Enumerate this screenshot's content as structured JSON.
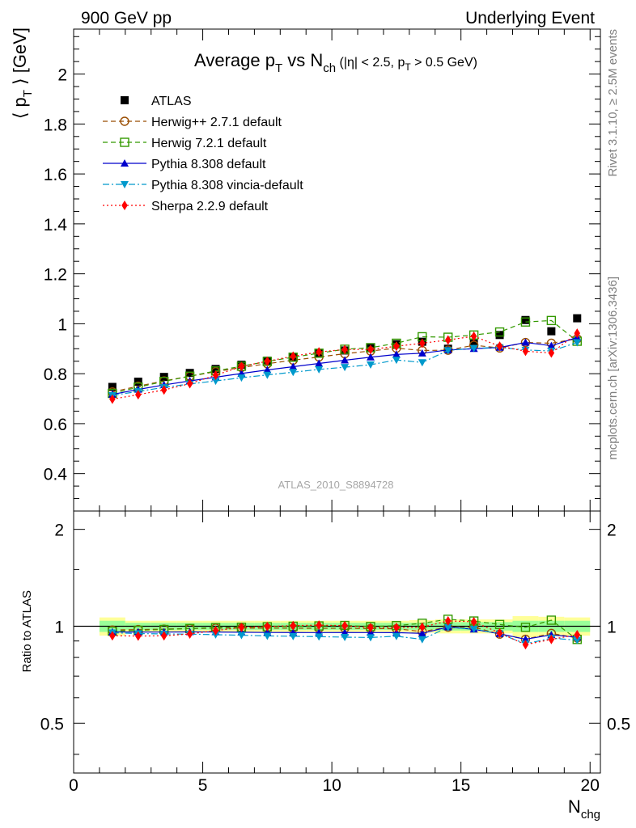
{
  "header": {
    "energy_label": "900 GeV pp",
    "process_label": "Underlying Event"
  },
  "side_labels": {
    "rivet": "Rivet 3.1.10, ≥ 2.5M events",
    "mcplots": "mcplots.cern.ch [arXiv:1306.3436]"
  },
  "analysis_id": "ATLAS_2010_S8894728",
  "chart_data": [
    {
      "type": "scatter",
      "title": "Average pT vs Nch (|η| < 2.5, pT > 0.5 GeV)",
      "title_parts": [
        "Average p",
        "T",
        " vs N",
        "ch",
        " (|η| < 2.5, p",
        "T",
        " > 0.5 GeV)"
      ],
      "ylabel": "⟨ pT ⟩ [GeV]",
      "ylabel_parts": [
        "⟨ p",
        "T",
        " ⟩ [GeV]"
      ],
      "xlabel": "Nchg",
      "xlabel_parts": [
        "N",
        "chg"
      ],
      "xlim": [
        0,
        20.4
      ],
      "ylim": [
        0.25,
        2.18
      ],
      "x_ticks": [
        0,
        5,
        10,
        15,
        20
      ],
      "x_tick_labels": [
        "0",
        "5",
        "10",
        "15",
        "20"
      ],
      "y_ticks": [
        0.4,
        0.6,
        0.8,
        1,
        1.2,
        1.4,
        1.6,
        1.8,
        2
      ],
      "y_tick_labels": [
        "0.4",
        "0.6",
        "0.8",
        "1",
        "1.2",
        "1.4",
        "1.6",
        "1.8",
        "2"
      ],
      "legend_position": "top-left",
      "x": [
        1.5,
        2.5,
        3.5,
        4.5,
        5.5,
        6.5,
        7.5,
        8.5,
        9.5,
        10.5,
        11.5,
        12.5,
        13.5,
        14.5,
        15.5,
        16.5,
        17.5,
        18.5,
        19.5
      ],
      "series": [
        {
          "name": "ATLAS",
          "color": "#000000",
          "marker": "square-filled",
          "line": "none",
          "values": [
            0.747,
            0.768,
            0.787,
            0.803,
            0.819,
            0.836,
            0.852,
            0.866,
            0.88,
            0.893,
            0.906,
            0.918,
            0.928,
            0.9,
            0.92,
            0.955,
            1.015,
            0.97,
            1.022
          ]
        },
        {
          "name": "Herwig++ 2.7.1 default",
          "color": "#994c00",
          "marker": "circle-open",
          "line": "dashed",
          "values": [
            0.727,
            0.75,
            0.771,
            0.79,
            0.808,
            0.825,
            0.84,
            0.854,
            0.867,
            0.88,
            0.891,
            0.902,
            0.893,
            0.894,
            0.914,
            0.903,
            0.925,
            0.922,
            0.94
          ]
        },
        {
          "name": "Herwig 7.2.1 default",
          "color": "#339900",
          "marker": "square-open",
          "line": "dashed",
          "values": [
            0.721,
            0.746,
            0.769,
            0.79,
            0.811,
            0.83,
            0.849,
            0.866,
            0.882,
            0.898,
            0.904,
            0.922,
            0.948,
            0.946,
            0.955,
            0.967,
            1.007,
            1.013,
            0.93
          ]
        },
        {
          "name": "Pythia 8.308 default",
          "color": "#0000cc",
          "marker": "triangle-up",
          "line": "solid",
          "values": [
            0.717,
            0.737,
            0.755,
            0.771,
            0.786,
            0.801,
            0.815,
            0.828,
            0.841,
            0.854,
            0.866,
            0.877,
            0.882,
            0.895,
            0.9,
            0.905,
            0.925,
            0.912,
            0.945
          ]
        },
        {
          "name": "Pythia 8.308 vincia-default",
          "color": "#0099cc",
          "marker": "triangle-down",
          "line": "dashdot",
          "values": [
            0.713,
            0.729,
            0.745,
            0.759,
            0.771,
            0.784,
            0.795,
            0.806,
            0.817,
            0.826,
            0.836,
            0.855,
            0.845,
            0.893,
            0.902,
            0.905,
            0.895,
            0.891,
            0.925
          ]
        },
        {
          "name": "Sherpa 2.2.9 default",
          "color": "#ff0000",
          "marker": "diamond",
          "line": "dotted",
          "values": [
            0.698,
            0.716,
            0.735,
            0.76,
            0.794,
            0.829,
            0.85,
            0.87,
            0.887,
            0.897,
            0.897,
            0.91,
            0.922,
            0.935,
            0.95,
            0.91,
            0.89,
            0.883,
            0.962
          ]
        }
      ]
    },
    {
      "type": "scatter",
      "ylabel": "Ratio to ATLAS",
      "xlim": [
        0,
        20.4
      ],
      "ylim": [
        0.35,
        2.28
      ],
      "y_ticks": [
        0.5,
        1,
        2
      ],
      "y_tick_labels": [
        "0.5",
        "1",
        "2"
      ],
      "reference_line": 1,
      "band_edges": [
        1,
        2,
        3,
        4,
        5,
        6,
        7,
        8,
        9,
        10,
        11,
        12,
        13,
        14,
        15,
        16,
        17,
        18,
        19,
        20
      ],
      "band_yellow_half_width": [
        0.065,
        0.04,
        0.04,
        0.04,
        0.04,
        0.04,
        0.04,
        0.04,
        0.04,
        0.04,
        0.04,
        0.04,
        0.045,
        0.05,
        0.05,
        0.05,
        0.075,
        0.07,
        0.065
      ],
      "band_green_half_width": [
        0.04,
        0.025,
        0.025,
        0.025,
        0.025,
        0.025,
        0.025,
        0.025,
        0.025,
        0.025,
        0.025,
        0.025,
        0.025,
        0.03,
        0.03,
        0.03,
        0.04,
        0.04,
        0.04
      ],
      "colors": {
        "band_yellow": "#ffff99",
        "band_green": "#99ff99"
      }
    }
  ]
}
